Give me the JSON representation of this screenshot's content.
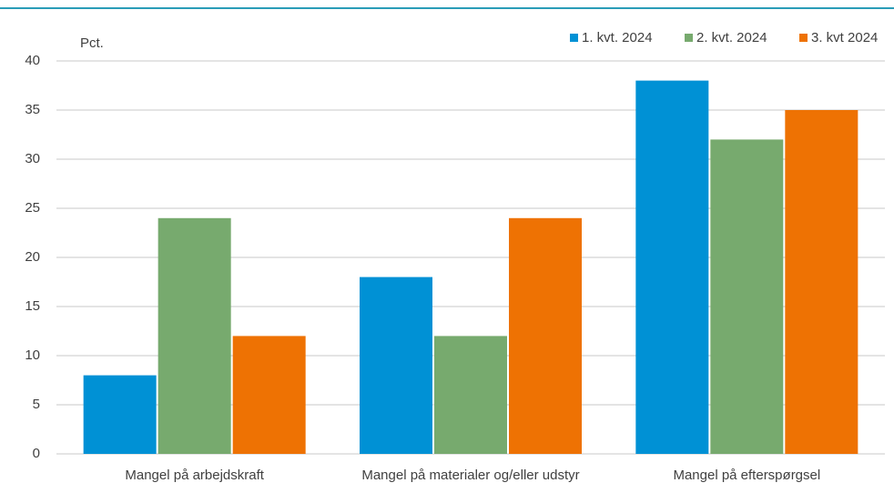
{
  "chart_data": {
    "type": "bar",
    "y_label": "Pct.",
    "categories": [
      "Mangel på arbejdskraft",
      "Mangel på materialer og/eller udstyr",
      "Mangel på efterspørgsel"
    ],
    "series": [
      {
        "name": "1. kvt. 2024",
        "color": "#0091d5",
        "values": [
          8,
          18,
          38
        ]
      },
      {
        "name": "2. kvt. 2024",
        "color": "#77aa6e",
        "values": [
          24,
          12,
          32
        ]
      },
      {
        "name": "3. kvt 2024",
        "color": "#ee7203",
        "values": [
          12,
          24,
          35
        ]
      }
    ],
    "ylim": [
      0,
      40
    ],
    "yticks": [
      0,
      5,
      10,
      15,
      20,
      25,
      30,
      35,
      40
    ],
    "grid": true,
    "legend": "top-right"
  }
}
